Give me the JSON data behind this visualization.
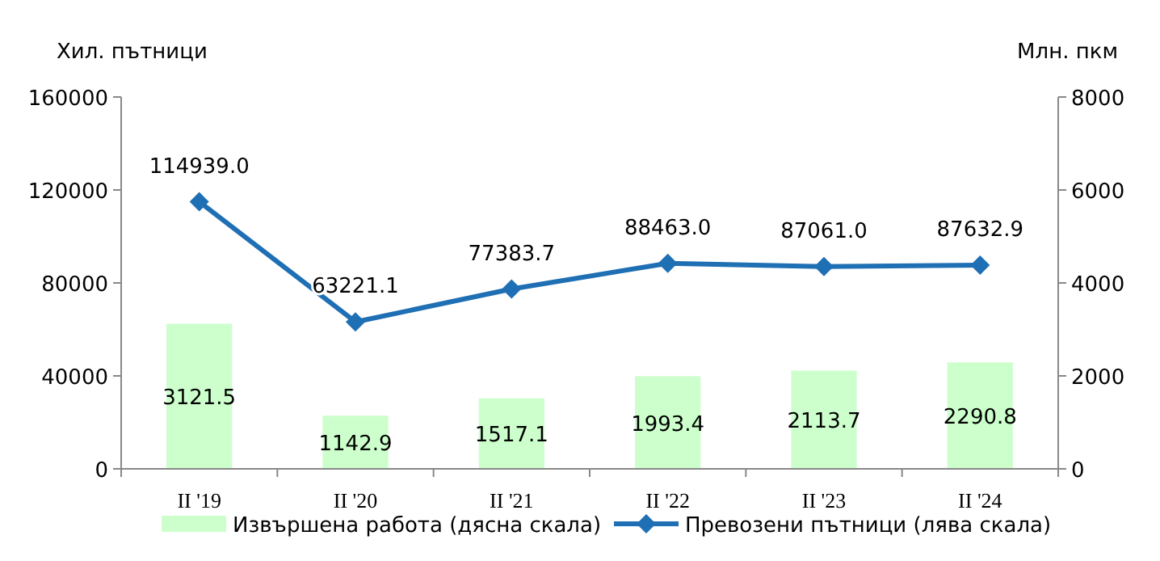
{
  "chart_data": {
    "type": "bar",
    "ylabel": "Хил. пътници",
    "y2label": "Млн. пкм",
    "categories": [
      "II '19",
      "II '20",
      "II '21",
      "II '22",
      "II '23",
      "II '24"
    ],
    "series": [
      {
        "name": "Извършена работа (дясна скала)",
        "axis": "y2",
        "color": "#ccffcc",
        "values": [
          3121.5,
          1142.9,
          1517.1,
          1993.4,
          2113.7,
          2290.8
        ],
        "value_labels": [
          "3121.5",
          "1142.9",
          "1517.1",
          "1993.4",
          "2113.7",
          "2290.8"
        ]
      },
      {
        "name": "Превозени пътници (лява скала)",
        "type": "line",
        "axis": "y",
        "color": "#1f6fb4",
        "marker": "diamond",
        "values": [
          114939,
          63221.1,
          77383.7,
          88463,
          87061,
          87632.9
        ],
        "value_labels": [
          "114939.0",
          "63221.1",
          "77383.7",
          "88463.0",
          "87061.0",
          "87632.9"
        ]
      }
    ],
    "ylim": [
      0,
      160000
    ],
    "yticks": [
      0,
      40000,
      80000,
      120000,
      160000
    ],
    "y2lim": [
      0,
      8000
    ],
    "y2ticks": [
      0,
      2000,
      4000,
      6000,
      8000
    ],
    "legend": "bottom",
    "grid": false
  }
}
